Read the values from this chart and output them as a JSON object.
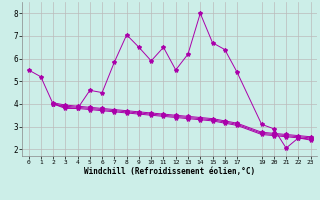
{
  "xlabel": "Windchill (Refroidissement éolien,°C)",
  "bg_color": "#cceee8",
  "line_color": "#aa00aa",
  "grid_color": "#bbbbbb",
  "xlim": [
    -0.5,
    23.5
  ],
  "ylim": [
    1.7,
    8.5
  ],
  "xticks": [
    0,
    1,
    2,
    3,
    4,
    5,
    6,
    7,
    8,
    9,
    10,
    11,
    12,
    13,
    14,
    15,
    16,
    17,
    19,
    20,
    21,
    22,
    23
  ],
  "yticks": [
    2,
    3,
    4,
    5,
    6,
    7,
    8
  ],
  "line1_x": [
    0,
    1,
    2,
    3,
    4,
    5,
    6,
    7,
    8,
    9,
    10,
    11,
    12,
    13,
    14,
    15,
    16,
    17,
    19,
    20,
    21,
    22,
    23
  ],
  "line1_y": [
    5.5,
    5.2,
    4.0,
    3.8,
    3.8,
    4.6,
    4.5,
    5.85,
    7.05,
    6.5,
    5.9,
    6.5,
    5.5,
    6.2,
    8.0,
    6.7,
    6.4,
    5.4,
    3.1,
    2.9,
    2.05,
    2.5,
    2.4
  ],
  "line2_x": [
    2,
    3,
    4,
    5,
    6,
    7,
    8,
    9,
    10,
    11,
    12,
    13,
    14,
    15,
    16,
    17,
    19,
    20,
    21,
    22,
    23
  ],
  "line2_y": [
    4.0,
    3.85,
    3.8,
    3.75,
    3.7,
    3.65,
    3.6,
    3.55,
    3.5,
    3.45,
    3.4,
    3.35,
    3.3,
    3.25,
    3.15,
    3.05,
    2.65,
    2.6,
    2.55,
    2.5,
    2.45
  ],
  "line3_x": [
    2,
    3,
    4,
    5,
    6,
    7,
    8,
    9,
    10,
    11,
    12,
    13,
    14,
    15,
    16,
    17,
    19,
    20,
    21,
    22,
    23
  ],
  "line3_y": [
    4.0,
    3.9,
    3.85,
    3.8,
    3.75,
    3.7,
    3.65,
    3.6,
    3.55,
    3.5,
    3.45,
    3.4,
    3.35,
    3.3,
    3.2,
    3.1,
    2.7,
    2.65,
    2.6,
    2.55,
    2.5
  ],
  "line4_x": [
    2,
    3,
    4,
    5,
    6,
    7,
    8,
    9,
    10,
    11,
    12,
    13,
    14,
    15,
    16,
    17,
    19,
    20,
    21,
    22,
    23
  ],
  "line4_y": [
    4.05,
    3.95,
    3.9,
    3.85,
    3.8,
    3.75,
    3.7,
    3.65,
    3.6,
    3.55,
    3.5,
    3.45,
    3.4,
    3.35,
    3.25,
    3.15,
    2.75,
    2.7,
    2.65,
    2.6,
    2.55
  ]
}
